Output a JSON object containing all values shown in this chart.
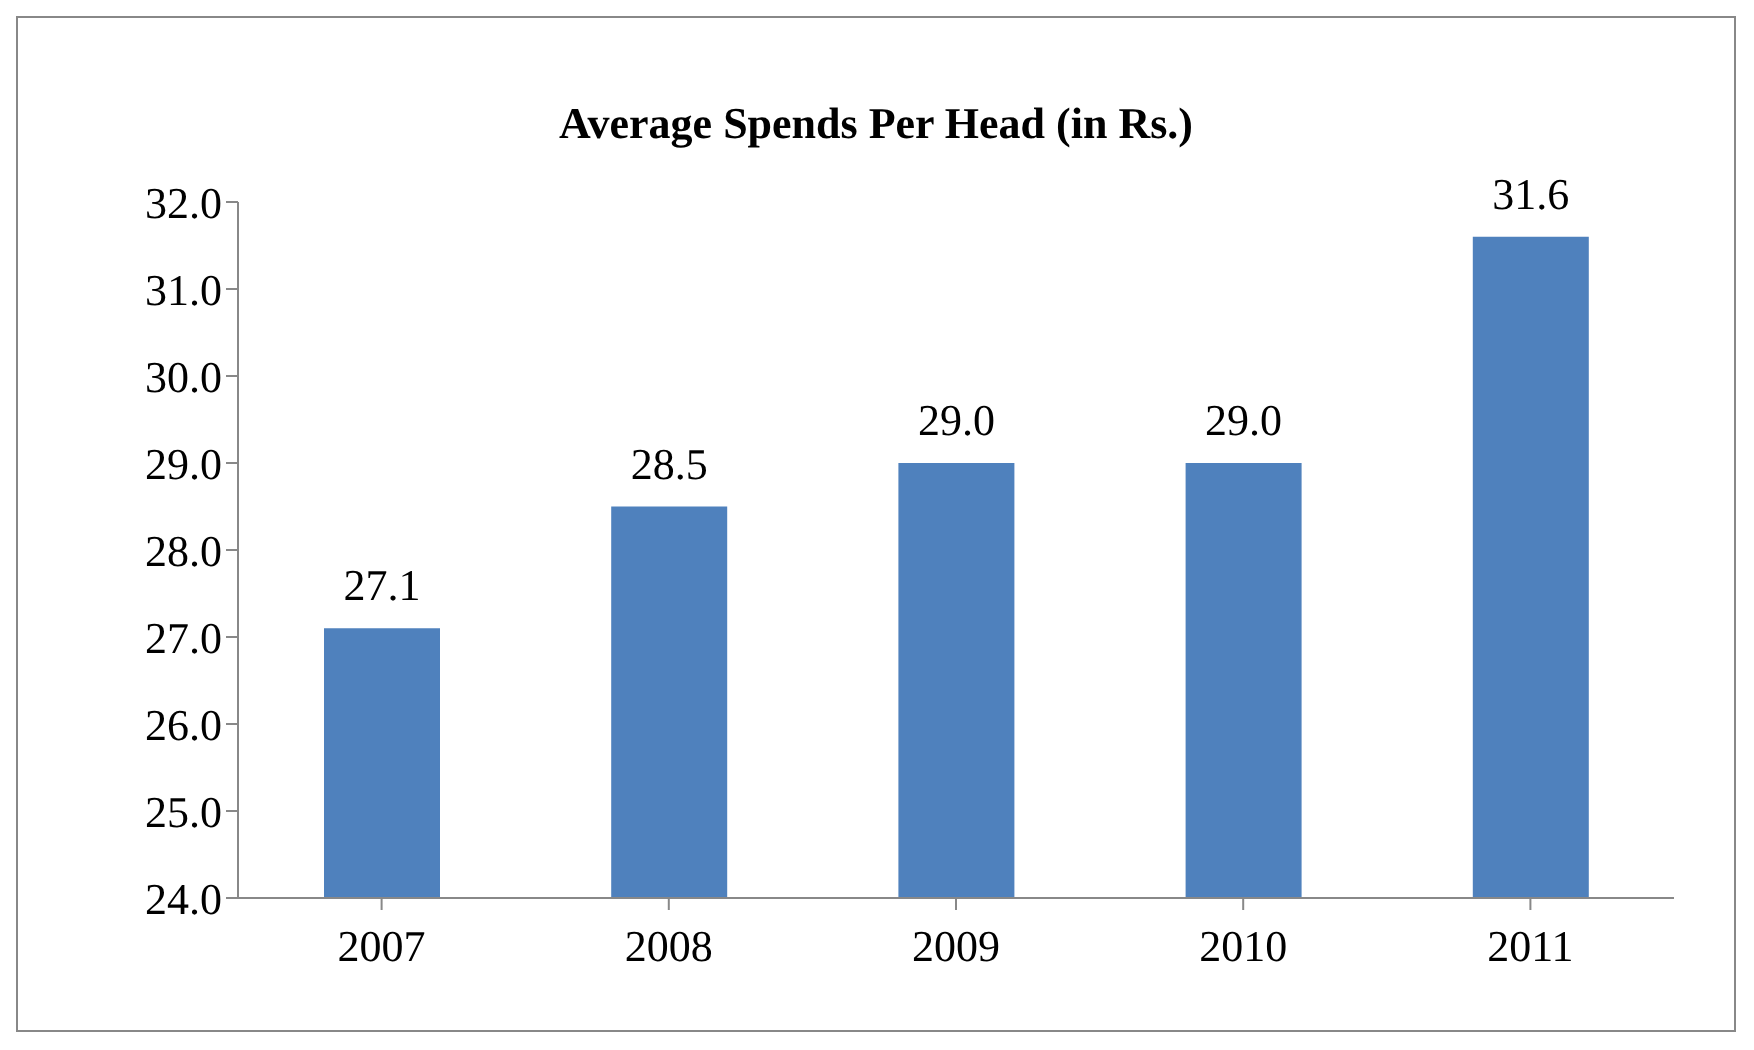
{
  "chart_data": {
    "type": "bar",
    "title": "Average Spends Per Head (in Rs.)",
    "categories": [
      "2007",
      "2008",
      "2009",
      "2010",
      "2011"
    ],
    "values": [
      27.1,
      28.5,
      29.0,
      29.0,
      31.6
    ],
    "value_labels": [
      "27.1",
      "28.5",
      "29.0",
      "29.0",
      "31.6"
    ],
    "color": "#4f81bd",
    "ylim": [
      24,
      32
    ],
    "yticks": [
      {
        "value": 24,
        "label": "24.0"
      },
      {
        "value": 25,
        "label": "25.0"
      },
      {
        "value": 26,
        "label": "26.0"
      },
      {
        "value": 27,
        "label": "27.0"
      },
      {
        "value": 28,
        "label": "28.0"
      },
      {
        "value": 29,
        "label": "29.0"
      },
      {
        "value": 30,
        "label": "30.0"
      },
      {
        "value": 31,
        "label": "31.0"
      },
      {
        "value": 32,
        "label": "32.0"
      }
    ],
    "grid": false,
    "legend": false
  }
}
